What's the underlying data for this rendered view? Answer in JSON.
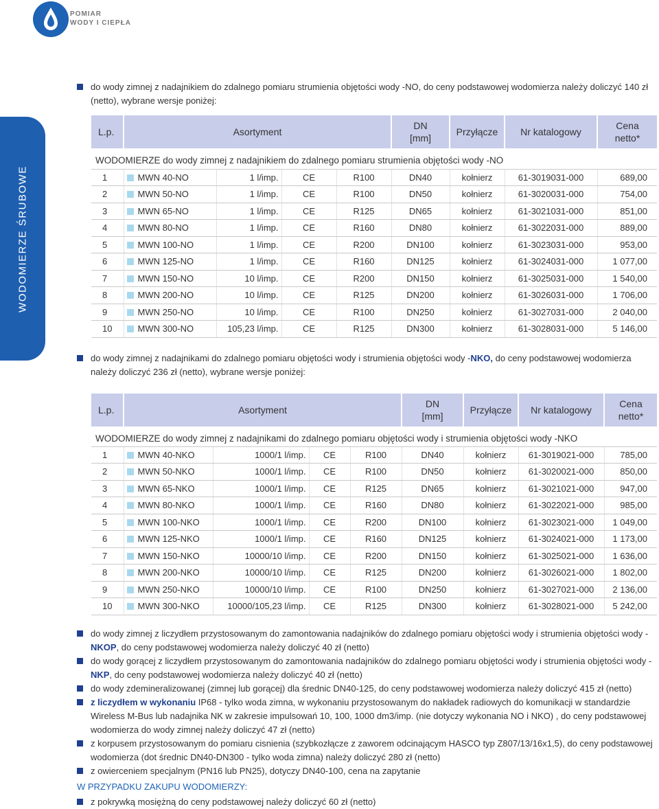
{
  "header": {
    "brand": [
      "POMIAR",
      "WODY I CIEPŁA"
    ]
  },
  "sidebar": {
    "label": "WODOMIERZE ŚRUBOWE"
  },
  "intro1": {
    "parts": [
      {
        "t": "do wody zimnej z nadajnikiem do zdalnego pomiaru strumienia objętości wody -NO, do ceny podstawowej wodomierza należy doliczyć 140 zł (netto), wybrane wersje poniżej:"
      }
    ]
  },
  "table1": {
    "headers": [
      "L.p.",
      "Asortyment",
      "DN\n[mm]",
      "Przyłącze",
      "Nr katalogowy",
      "Cena\nnetto*"
    ],
    "caption": "WODOMIERZE do wody zimnej z nadajnikiem do zdalnego pomiaru strumienia objętości wody -NO",
    "rows": [
      [
        "1",
        "MWN 40-NO",
        "1 l/imp.",
        "CE",
        "R100",
        "DN40",
        "kołnierz",
        "61-3019031-000",
        "689,00"
      ],
      [
        "2",
        "MWN 50-NO",
        "1 l/imp.",
        "CE",
        "R100",
        "DN50",
        "kołnierz",
        "61-3020031-000",
        "754,00"
      ],
      [
        "3",
        "MWN 65-NO",
        "1 l/imp.",
        "CE",
        "R125",
        "DN65",
        "kołnierz",
        "61-3021031-000",
        "851,00"
      ],
      [
        "4",
        "MWN 80-NO",
        "1 l/imp.",
        "CE",
        "R160",
        "DN80",
        "kołnierz",
        "61-3022031-000",
        "889,00"
      ],
      [
        "5",
        "MWN 100-NO",
        "1 l/imp.",
        "CE",
        "R200",
        "DN100",
        "kołnierz",
        "61-3023031-000",
        "953,00"
      ],
      [
        "6",
        "MWN 125-NO",
        "1 l/imp.",
        "CE",
        "R160",
        "DN125",
        "kołnierz",
        "61-3024031-000",
        "1 077,00"
      ],
      [
        "7",
        "MWN 150-NO",
        "10 l/imp.",
        "CE",
        "R200",
        "DN150",
        "kołnierz",
        "61-3025031-000",
        "1 540,00"
      ],
      [
        "8",
        "MWN 200-NO",
        "10 l/imp.",
        "CE",
        "R125",
        "DN200",
        "kołnierz",
        "61-3026031-000",
        "1 706,00"
      ],
      [
        "9",
        "MWN 250-NO",
        "10 l/imp.",
        "CE",
        "R100",
        "DN250",
        "kołnierz",
        "61-3027031-000",
        "2 040,00"
      ],
      [
        "10",
        "MWN 300-NO",
        "105,23 l/imp.",
        "CE",
        "R125",
        "DN300",
        "kołnierz",
        "61-3028031-000",
        "5 146,00"
      ]
    ]
  },
  "intro2": {
    "parts": [
      {
        "t": "do wody zimnej z nadajnikami do zdalnego pomiaru objętości wody i strumienia objętości wody -"
      },
      {
        "t": "NKO,",
        "b": true
      },
      {
        "t": " do ceny podstawowej wodomierza należy doliczyć 236 zł (netto), wybrane wersje poniżej:"
      }
    ]
  },
  "table2": {
    "headers": [
      "L.p.",
      "Asortyment",
      "DN\n[mm]",
      "Przyłącze",
      "Nr katalogowy",
      "Cena\nnetto*"
    ],
    "caption": "WODOMIERZE do wody zimnej z nadajnikami do zdalnego pomiaru objętości wody i strumienia objętości wody -NKO",
    "rows": [
      [
        "1",
        "MWN 40-NKO",
        "1000/1 l/imp.",
        "CE",
        "R100",
        "DN40",
        "kołnierz",
        "61-3019021-000",
        "785,00"
      ],
      [
        "2",
        "MWN 50-NKO",
        "1000/1 l/imp.",
        "CE",
        "R100",
        "DN50",
        "kołnierz",
        "61-3020021-000",
        "850,00"
      ],
      [
        "3",
        "MWN 65-NKO",
        "1000/1 l/imp.",
        "CE",
        "R125",
        "DN65",
        "kołnierz",
        "61-3021021-000",
        "947,00"
      ],
      [
        "4",
        "MWN 80-NKO",
        "1000/1 l/imp.",
        "CE",
        "R160",
        "DN80",
        "kołnierz",
        "61-3022021-000",
        "985,00"
      ],
      [
        "5",
        "MWN 100-NKO",
        "1000/1 l/imp.",
        "CE",
        "R200",
        "DN100",
        "kołnierz",
        "61-3023021-000",
        "1 049,00"
      ],
      [
        "6",
        "MWN 125-NKO",
        "1000/1 l/imp.",
        "CE",
        "R160",
        "DN125",
        "kołnierz",
        "61-3024021-000",
        "1 173,00"
      ],
      [
        "7",
        "MWN 150-NKO",
        "10000/10 l/imp.",
        "CE",
        "R200",
        "DN150",
        "kołnierz",
        "61-3025021-000",
        "1 636,00"
      ],
      [
        "8",
        "MWN 200-NKO",
        "10000/10 l/imp.",
        "CE",
        "R125",
        "DN200",
        "kołnierz",
        "61-3026021-000",
        "1 802,00"
      ],
      [
        "9",
        "MWN 250-NKO",
        "10000/10 l/imp.",
        "CE",
        "R100",
        "DN250",
        "kołnierz",
        "61-3027021-000",
        "2 136,00"
      ],
      [
        "10",
        "MWN 300-NKO",
        "10000/105,23 l/imp.",
        "CE",
        "R125",
        "DN300",
        "kołnierz",
        "61-3028021-000",
        "5 242,00"
      ]
    ]
  },
  "notes": [
    {
      "parts": [
        {
          "t": "do wody zimnej z liczydłem przystosowanym do zamontowania nadajników do zdalnego pomiaru objętości wody i strumienia objętości wody -"
        },
        {
          "t": "NKOP",
          "b": true
        },
        {
          "t": ", do ceny podstawowej wodomierza należy doliczyć 40 zł (netto)"
        }
      ]
    },
    {
      "parts": [
        {
          "t": "do wody gorącej z liczydłem przystosowanym do zamontowania nadajników do zdalnego pomiaru objętości wody i strumienia objętości wody -"
        },
        {
          "t": "NKP",
          "b": true
        },
        {
          "t": ", do ceny podstawowej wodomierza należy doliczyć 40 zł (netto)"
        }
      ]
    },
    {
      "parts": [
        {
          "t": "do wody zdemineralizowanej (zimnej lub gorącej) dla średnic DN40-125, do ceny podstawowej wodomierza należy doliczyć 415 zł (netto)"
        }
      ]
    },
    {
      "parts": [
        {
          "t": "z liczydłem w wykonaniu",
          "b": true
        },
        {
          "t": " IP68 - tylko woda zimna, w wykonaniu przystosowanym do nakładek radiowych do komunikacji w standardzie Wireless M-Bus lub nadajnika NK w zakresie impulsowań 10, 100, 1000 dm3/imp. (nie dotyczy wykonania NO i NKO) , do ceny podstawowej wodomierza do wody zimnej należy doliczyć 47 zł (netto)"
        }
      ]
    },
    {
      "parts": [
        {
          "t": "z korpusem przystosowanym do pomiaru cisnienia (szybkozłącze z zaworem odcinającym HASCO typ Z807/13/16x1,5), do ceny podstawowej wodomierza (dot średnic DN40-DN300 - tylko woda zimna) należy doliczyć 280 zł (netto)"
        }
      ]
    },
    {
      "parts": [
        {
          "t": "z owierceniem specjalnym (PN16 lub PN25), dotyczy DN40-100, cena na zapytanie"
        }
      ]
    }
  ],
  "purchase_heading": "W PRZYPADKU ZAKUPU WODOMIERZY:",
  "purchase_notes": [
    {
      "parts": [
        {
          "t": "z pokrywką mosiężną do ceny podstawowej należy doliczyć 60 zł (netto)"
        }
      ]
    }
  ]
}
